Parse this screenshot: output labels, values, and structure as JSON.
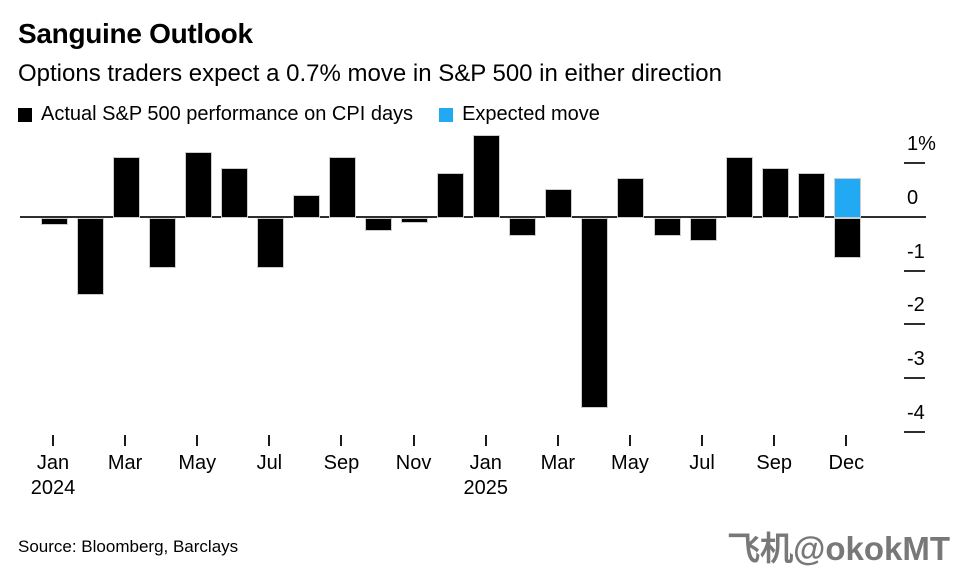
{
  "header": {
    "title": "Sanguine Outlook",
    "subtitle": "Options traders expect a 0.7% move in S&P 500 in either direction"
  },
  "legend": {
    "actual": {
      "label": "Actual S&P 500 performance on CPI days",
      "swatch_color": "#000000"
    },
    "expected": {
      "label": "Expected move",
      "swatch_color": "#21aaf3"
    }
  },
  "source": "Source: Bloomberg, Barclays",
  "watermark": "飞机@okokMT",
  "chart_data": {
    "type": "bar",
    "title": "Sanguine Outlook",
    "subtitle": "Options traders expect a 0.7% move in S&P 500 in either direction",
    "unit": "%",
    "ylim": [
      -4.5,
      1.5
    ],
    "grid": false,
    "legend_position": "top",
    "colors": {
      "actual": "#000000",
      "expected": "#21aaf3",
      "axis": "#2e2e2e"
    },
    "y_ticks": [
      {
        "value": 1,
        "label": "1%"
      },
      {
        "value": 0,
        "label": "0"
      },
      {
        "value": -1,
        "label": "-1"
      },
      {
        "value": -2,
        "label": "-2"
      },
      {
        "value": -3,
        "label": "-3"
      },
      {
        "value": -4,
        "label": "-4"
      }
    ],
    "series": [
      {
        "name": "Actual S&P 500 performance on CPI days",
        "color": "#000000"
      },
      {
        "name": "Expected move",
        "color": "#21aaf3"
      }
    ],
    "slots": [
      {
        "month": "Jan 2024",
        "actual": -0.1
      },
      {
        "month": "Feb 2024",
        "actual": -1.4
      },
      {
        "month": "Mar 2024",
        "actual": 1.1
      },
      {
        "month": "Apr 2024",
        "actual": -0.9
      },
      {
        "month": "May 2024",
        "actual": 1.2
      },
      {
        "month": "Jun 2024",
        "actual": 0.9
      },
      {
        "month": "Jul 2024",
        "actual": -0.9
      },
      {
        "month": "Aug 2024",
        "actual": 0.4
      },
      {
        "month": "Sep 2024",
        "actual": 1.1
      },
      {
        "month": "Oct 2024",
        "actual": -0.2
      },
      {
        "month": "Nov 2024",
        "actual": -0.05
      },
      {
        "month": "Dec 2024",
        "actual": 0.8
      },
      {
        "month": "Jan 2025",
        "actual": 1.5
      },
      {
        "month": "Feb 2025",
        "actual": -0.3
      },
      {
        "month": "Mar 2025",
        "actual": 0.5
      },
      {
        "month": "Apr 2025",
        "actual": -3.5
      },
      {
        "month": "May 2025",
        "actual": 0.7
      },
      {
        "month": "Jun 2025",
        "actual": -0.3
      },
      {
        "month": "Jul 2025",
        "actual": -0.4
      },
      {
        "month": "Aug 2025",
        "actual": 1.1
      },
      {
        "month": "Sep 2025",
        "actual": 0.9
      },
      {
        "month": "Oct 2025",
        "actual": 0.8
      },
      {
        "month": "Dec 2025",
        "actual": -0.7,
        "expected": 0.7
      }
    ],
    "x_ticks": [
      {
        "slot": 0,
        "label": "Jan",
        "year": "2024"
      },
      {
        "slot": 2,
        "label": "Mar"
      },
      {
        "slot": 4,
        "label": "May"
      },
      {
        "slot": 6,
        "label": "Jul"
      },
      {
        "slot": 8,
        "label": "Sep"
      },
      {
        "slot": 10,
        "label": "Nov"
      },
      {
        "slot": 12,
        "label": "Jan",
        "year": "2025"
      },
      {
        "slot": 14,
        "label": "Mar"
      },
      {
        "slot": 16,
        "label": "May"
      },
      {
        "slot": 18,
        "label": "Jul"
      },
      {
        "slot": 20,
        "label": "Sep"
      },
      {
        "slot": 22,
        "label": "Dec"
      }
    ]
  }
}
